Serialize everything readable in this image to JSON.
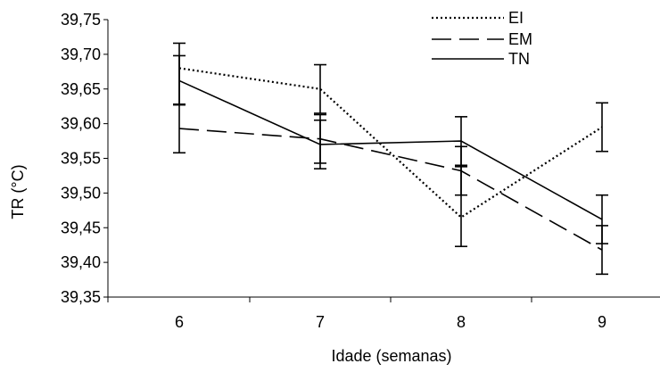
{
  "chart_data": {
    "type": "line",
    "title": "",
    "xlabel": "Idade (semanas)",
    "ylabel": "TR (°C)",
    "categories": [
      "6",
      "7",
      "8",
      "9"
    ],
    "ylim": [
      39.35,
      39.75
    ],
    "ytick_values": [
      39.35,
      39.4,
      39.45,
      39.5,
      39.55,
      39.6,
      39.65,
      39.7,
      39.75
    ],
    "ytick_labels": [
      "39,35",
      "39,40",
      "39,45",
      "39,50",
      "39,55",
      "39,60",
      "39,65",
      "39,70",
      "39,75"
    ],
    "grid": false,
    "legend_position": "top-right",
    "error_bar_halfwidth": 0.035,
    "series": [
      {
        "name": "EI",
        "style": "dotted",
        "values": [
          39.68,
          39.65,
          39.465,
          39.595
        ],
        "error_lower": [
          39.628,
          39.615,
          39.423,
          39.56
        ],
        "error_upper": [
          39.698,
          39.685,
          39.538,
          39.63
        ]
      },
      {
        "name": "EM",
        "style": "long-dash",
        "values": [
          39.593,
          39.578,
          39.532,
          39.418
        ],
        "error_lower": [
          39.558,
          39.543,
          39.497,
          39.383
        ],
        "error_upper": [
          39.628,
          39.613,
          39.567,
          39.453
        ]
      },
      {
        "name": "TN",
        "style": "solid",
        "values": [
          39.662,
          39.57,
          39.575,
          39.462
        ],
        "error_lower": [
          39.627,
          39.535,
          39.54,
          39.427
        ],
        "error_upper": [
          39.716,
          39.605,
          39.61,
          39.497
        ]
      }
    ],
    "colors": {
      "line": "#000000",
      "background": "#ffffff"
    }
  }
}
